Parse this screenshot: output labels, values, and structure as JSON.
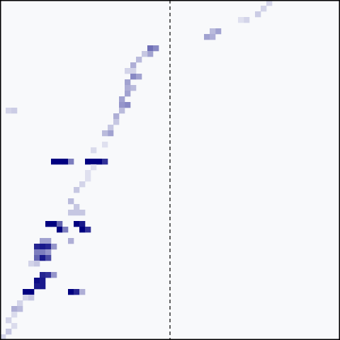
{
  "chart_data": {
    "type": "heatmap",
    "title": "",
    "xlabel": "",
    "ylabel": "",
    "grid": false,
    "legend": "none",
    "colors": {
      "low": "#f8f9fb",
      "high": "#000080",
      "frame": "#000000",
      "divider": "#000000"
    },
    "grid_size": {
      "cols": 60,
      "rows": 60
    },
    "divider": {
      "x": 30,
      "style": "dashed"
    },
    "cells": [
      [
        47,
        0,
        0.15
      ],
      [
        46,
        1,
        0.15
      ],
      [
        45,
        2,
        0.18
      ],
      [
        43,
        3,
        0.15
      ],
      [
        42,
        3,
        0.1
      ],
      [
        38,
        5,
        0.35
      ],
      [
        37,
        5,
        0.25
      ],
      [
        36,
        6,
        0.35
      ],
      [
        37,
        6,
        0.3
      ],
      [
        26,
        8,
        0.55
      ],
      [
        27,
        8,
        0.45
      ],
      [
        26,
        9,
        0.35
      ],
      [
        25,
        9,
        0.2
      ],
      [
        24,
        10,
        0.25
      ],
      [
        23,
        11,
        0.3
      ],
      [
        23,
        12,
        0.15
      ],
      [
        22,
        12,
        0.15
      ],
      [
        23,
        13,
        0.45
      ],
      [
        24,
        13,
        0.35
      ],
      [
        22,
        14,
        0.35
      ],
      [
        23,
        15,
        0.25
      ],
      [
        22,
        15,
        0.3
      ],
      [
        22,
        16,
        0.35
      ],
      [
        21,
        17,
        0.35
      ],
      [
        22,
        18,
        0.45
      ],
      [
        21,
        18,
        0.4
      ],
      [
        1,
        19,
        0.15
      ],
      [
        2,
        19,
        0.18
      ],
      [
        21,
        19,
        0.25
      ],
      [
        20,
        20,
        0.3
      ],
      [
        20,
        21,
        0.2
      ],
      [
        19,
        22,
        0.2
      ],
      [
        19,
        23,
        0.35
      ],
      [
        18,
        23,
        0.25
      ],
      [
        18,
        25,
        0.1
      ],
      [
        16,
        26,
        0.12
      ],
      [
        9,
        28,
        1.0
      ],
      [
        10,
        28,
        1.0
      ],
      [
        11,
        28,
        1.0
      ],
      [
        12,
        28,
        0.5
      ],
      [
        15,
        28,
        1.0
      ],
      [
        16,
        28,
        1.0
      ],
      [
        17,
        28,
        1.0
      ],
      [
        18,
        28,
        0.8
      ],
      [
        16,
        29,
        0.1
      ],
      [
        15,
        30,
        0.1
      ],
      [
        15,
        31,
        0.1
      ],
      [
        14,
        32,
        0.15
      ],
      [
        13,
        33,
        0.2
      ],
      [
        12,
        35,
        0.25
      ],
      [
        13,
        36,
        0.2
      ],
      [
        12,
        37,
        0.2
      ],
      [
        13,
        37,
        0.2
      ],
      [
        14,
        37,
        0.2
      ],
      [
        8,
        39,
        1.0
      ],
      [
        9,
        39,
        1.0
      ],
      [
        10,
        39,
        0.6
      ],
      [
        13,
        39,
        1.0
      ],
      [
        14,
        39,
        0.9
      ],
      [
        10,
        40,
        1.0
      ],
      [
        11,
        40,
        0.5
      ],
      [
        14,
        40,
        1.0
      ],
      [
        15,
        40,
        0.8
      ],
      [
        12,
        42,
        0.3
      ],
      [
        7,
        42,
        0.35
      ],
      [
        8,
        42,
        0.35
      ],
      [
        6,
        43,
        0.85
      ],
      [
        7,
        43,
        0.9
      ],
      [
        8,
        43,
        0.85
      ],
      [
        9,
        43,
        0.4
      ],
      [
        6,
        44,
        0.5
      ],
      [
        7,
        44,
        0.5
      ],
      [
        8,
        44,
        0.4
      ],
      [
        6,
        45,
        0.6
      ],
      [
        7,
        45,
        0.9
      ],
      [
        8,
        45,
        0.7
      ],
      [
        5,
        46,
        0.15
      ],
      [
        6,
        46,
        0.2
      ],
      [
        7,
        48,
        0.85
      ],
      [
        8,
        48,
        0.8
      ],
      [
        9,
        48,
        0.4
      ],
      [
        6,
        49,
        0.95
      ],
      [
        7,
        49,
        0.9
      ],
      [
        6,
        50,
        0.9
      ],
      [
        7,
        50,
        0.9
      ],
      [
        5,
        51,
        1.0
      ],
      [
        4,
        51,
        1.0
      ],
      [
        12,
        51,
        1.0
      ],
      [
        13,
        51,
        0.85
      ],
      [
        14,
        51,
        0.3
      ],
      [
        4,
        52,
        0.15
      ],
      [
        5,
        52,
        0.2
      ],
      [
        3,
        53,
        0.15
      ],
      [
        3,
        54,
        0.25
      ],
      [
        2,
        54,
        0.3
      ],
      [
        2,
        55,
        0.12
      ],
      [
        1,
        56,
        0.15
      ],
      [
        2,
        57,
        0.12
      ],
      [
        1,
        58,
        0.2
      ],
      [
        0,
        59,
        0.15
      ]
    ]
  }
}
